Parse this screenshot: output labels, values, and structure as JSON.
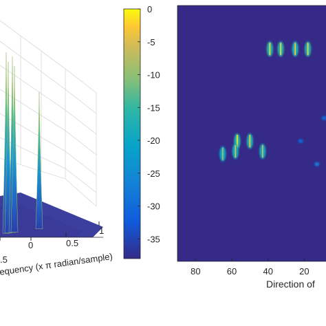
{
  "chart_data": [
    {
      "type": "surface",
      "xlabel": "equency (x π radian/sample)",
      "x_ticks": [
        ".5",
        "0",
        "0.5",
        "1"
      ],
      "z_range": [
        -38,
        0
      ],
      "colormap": "parula",
      "peaks": [
        {
          "x": -0.6,
          "z": -1
        },
        {
          "x": -0.55,
          "z": -3
        },
        {
          "x": -0.45,
          "z": -2
        },
        {
          "x": -0.4,
          "z": -4
        },
        {
          "x": 0.2,
          "z": -10
        }
      ]
    },
    {
      "type": "colorbar",
      "range": [
        -38,
        0
      ],
      "ticks": [
        0,
        -5,
        -10,
        -15,
        -20,
        -25,
        -30,
        -35
      ],
      "tick_labels": [
        "0",
        "-5",
        "-10",
        "-15",
        "-20",
        "-25",
        "-30",
        "-35"
      ]
    },
    {
      "type": "heatmap",
      "xlabel": "Direction of",
      "x_reversed": true,
      "xlim": [
        90,
        8
      ],
      "x_ticks": [
        80,
        60,
        40,
        20
      ],
      "x_tick_labels": [
        "80",
        "60",
        "40",
        "20"
      ],
      "background_value": -37,
      "blobs": [
        {
          "x": 39,
          "y": 0.83,
          "value": -2
        },
        {
          "x": 33,
          "y": 0.83,
          "value": -2
        },
        {
          "x": 25,
          "y": 0.83,
          "value": -3
        },
        {
          "x": 18,
          "y": 0.83,
          "value": -2
        },
        {
          "x": 57,
          "y": 0.47,
          "value": -1
        },
        {
          "x": 50,
          "y": 0.47,
          "value": -3
        },
        {
          "x": 58,
          "y": 0.43,
          "value": -5
        },
        {
          "x": 43,
          "y": 0.43,
          "value": -6
        },
        {
          "x": 65,
          "y": 0.42,
          "value": -8
        },
        {
          "x": 22,
          "y": 0.47,
          "value": -26
        },
        {
          "x": 13,
          "y": 0.38,
          "value": -20
        },
        {
          "x": 9,
          "y": 0.56,
          "value": -25
        }
      ]
    }
  ]
}
